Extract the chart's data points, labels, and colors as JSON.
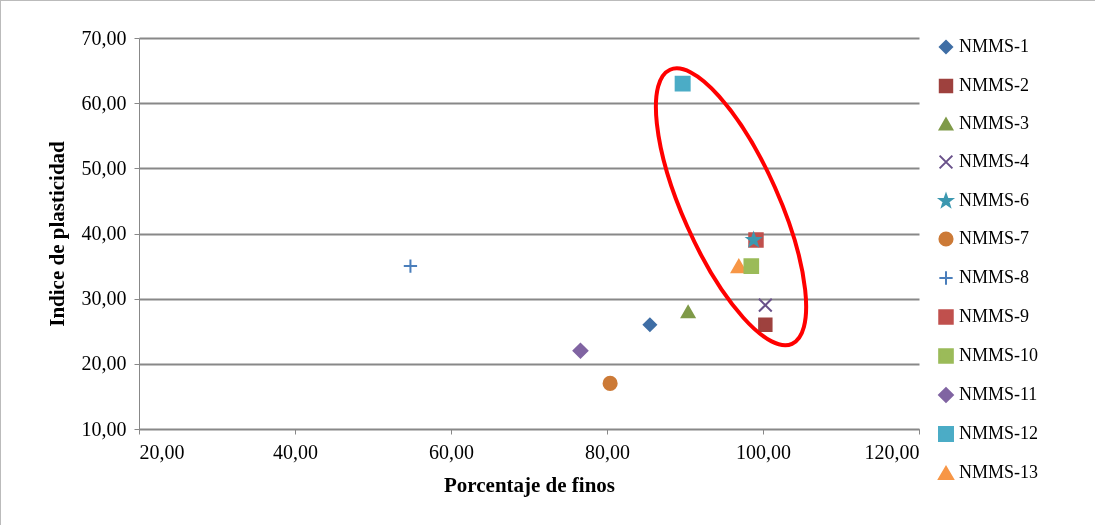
{
  "chart_data": {
    "type": "scatter",
    "xlabel": "Porcentaje de finos",
    "ylabel": "Indice de plasticidad",
    "xlim": [
      20,
      120
    ],
    "xticks": [
      {
        "value": 20,
        "label": "20,00"
      },
      {
        "value": 40,
        "label": "40,00"
      },
      {
        "value": 60,
        "label": "60,00"
      },
      {
        "value": 80,
        "label": "80,00"
      },
      {
        "value": 100,
        "label": "100,00"
      },
      {
        "value": 120,
        "label": "120,00"
      }
    ],
    "ylim": [
      10,
      70
    ],
    "yticks": [
      {
        "value": 10,
        "label": "10,00"
      },
      {
        "value": 20,
        "label": "20,00"
      },
      {
        "value": 30,
        "label": "30,00"
      },
      {
        "value": 40,
        "label": "40,00"
      },
      {
        "value": 50,
        "label": "50,00"
      },
      {
        "value": 60,
        "label": "60,00"
      },
      {
        "value": 70,
        "label": "70,00"
      }
    ],
    "grid": "y",
    "legend": "right",
    "series": [
      {
        "name": "NMMS-1",
        "color": "#3f6ea5",
        "marker": "diamond",
        "x": [
          85.5
        ],
        "values": [
          26
        ]
      },
      {
        "name": "NMMS-2",
        "color": "#9e413e",
        "marker": "square",
        "x": [
          100.3
        ],
        "values": [
          26
        ]
      },
      {
        "name": "NMMS-3",
        "color": "#7f9a48",
        "marker": "triangle",
        "x": [
          90.4
        ],
        "values": [
          28
        ]
      },
      {
        "name": "NMMS-4",
        "color": "#69518a",
        "marker": "cross",
        "x": [
          100.3
        ],
        "values": [
          29
        ]
      },
      {
        "name": "NMMS-6",
        "color": "#3c98b0",
        "marker": "star",
        "x": [
          98.8
        ],
        "values": [
          39
        ]
      },
      {
        "name": "NMMS-7",
        "color": "#cc7a37",
        "marker": "circle",
        "x": [
          80.4
        ],
        "values": [
          17
        ]
      },
      {
        "name": "NMMS-8",
        "color": "#4a7ebb",
        "marker": "plus",
        "x": [
          54.8
        ],
        "values": [
          35
        ]
      },
      {
        "name": "NMMS-9",
        "color": "#c0504d",
        "marker": "square",
        "x": [
          99.1
        ],
        "values": [
          39
        ]
      },
      {
        "name": "NMMS-10",
        "color": "#9bbb59",
        "marker": "square",
        "x": [
          98.5
        ],
        "values": [
          35
        ]
      },
      {
        "name": "NMMS-11",
        "color": "#8064a2",
        "marker": "diamond",
        "x": [
          76.6
        ],
        "values": [
          22
        ]
      },
      {
        "name": "NMMS-12",
        "color": "#4bacc6",
        "marker": "square",
        "x": [
          89.7
        ],
        "values": [
          63
        ]
      },
      {
        "name": "NMMS-13",
        "color": "#f79646",
        "marker": "triangle",
        "x": [
          96.9
        ],
        "values": [
          35
        ]
      }
    ]
  }
}
